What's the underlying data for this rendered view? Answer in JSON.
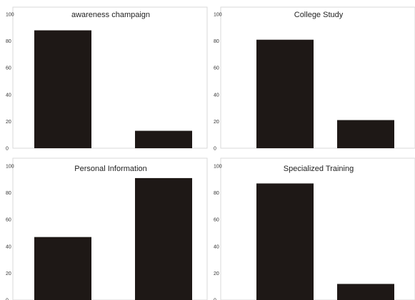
{
  "chart_data": [
    {
      "type": "bar",
      "title": "awareness champaign",
      "categories": [
        "",
        ""
      ],
      "values": [
        88,
        13
      ],
      "ylim": [
        0,
        100
      ],
      "yticks": [
        0,
        20,
        40,
        60,
        80,
        100
      ],
      "grid": false,
      "bar_color": "#1e1816"
    },
    {
      "type": "bar",
      "title": "College Study",
      "categories": [
        "",
        ""
      ],
      "values": [
        81,
        21
      ],
      "ylim": [
        0,
        100
      ],
      "yticks": [
        0,
        20,
        40,
        60,
        80,
        100
      ],
      "grid": false,
      "bar_color": "#1e1816"
    },
    {
      "type": "bar",
      "title": "Personal Information",
      "categories": [
        "",
        ""
      ],
      "values": [
        47,
        91
      ],
      "ylim": [
        0,
        100
      ],
      "yticks": [
        0,
        20,
        40,
        60,
        80,
        100
      ],
      "grid": false,
      "bar_color": "#1e1816"
    },
    {
      "type": "bar",
      "title": "Specialized Training",
      "categories": [
        "",
        ""
      ],
      "values": [
        87,
        12
      ],
      "ylim": [
        0,
        100
      ],
      "yticks": [
        0,
        20,
        40,
        60,
        80,
        100
      ],
      "grid": false,
      "bar_color": "#1e1816"
    }
  ]
}
